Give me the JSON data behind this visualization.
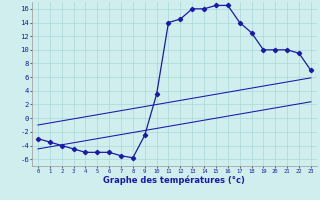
{
  "title": "Graphe des températures (°c)",
  "hours": [
    0,
    1,
    2,
    3,
    4,
    5,
    6,
    7,
    8,
    9,
    10,
    11,
    12,
    13,
    14,
    15,
    16,
    17,
    18,
    19,
    20,
    21,
    22,
    23
  ],
  "curve_main": [
    -3,
    -3.5,
    -4,
    -4.5,
    -5,
    -5,
    -5,
    -5.5,
    -5.8,
    -2.5,
    3.5,
    14,
    14.5,
    16,
    16,
    16.5,
    16.5,
    14,
    12.5,
    10,
    10,
    10,
    9.5,
    7
  ],
  "curve_line1": [
    -1.0,
    -0.7,
    -0.4,
    -0.1,
    0.2,
    0.5,
    0.8,
    1.1,
    1.4,
    1.7,
    2.0,
    2.3,
    2.6,
    2.9,
    3.2,
    3.5,
    3.8,
    4.1,
    4.4,
    4.7,
    5.0,
    5.3,
    5.6,
    5.9
  ],
  "curve_line2": [
    -4.5,
    -4.2,
    -3.9,
    -3.6,
    -3.3,
    -3.0,
    -2.7,
    -2.4,
    -2.1,
    -1.8,
    -1.5,
    -1.2,
    -0.9,
    -0.6,
    -0.3,
    0.0,
    0.3,
    0.6,
    0.9,
    1.2,
    1.5,
    1.8,
    2.1,
    2.4
  ],
  "xlim_min": -0.5,
  "xlim_max": 23.5,
  "ylim_min": -7,
  "ylim_max": 17,
  "yticks": [
    -6,
    -4,
    -2,
    0,
    2,
    4,
    6,
    8,
    10,
    12,
    14,
    16
  ],
  "xticks": [
    0,
    1,
    2,
    3,
    4,
    5,
    6,
    7,
    8,
    9,
    10,
    11,
    12,
    13,
    14,
    15,
    16,
    17,
    18,
    19,
    20,
    21,
    22,
    23
  ],
  "line_color": "#1a1aaa",
  "bg_color": "#d0eeee",
  "grid_color": "#aad8d8",
  "marker": "D",
  "marker_size": 2.2,
  "linewidth": 0.9,
  "xlabel_fontsize": 6.0,
  "ytick_fontsize": 5.2,
  "xtick_fontsize": 4.0
}
